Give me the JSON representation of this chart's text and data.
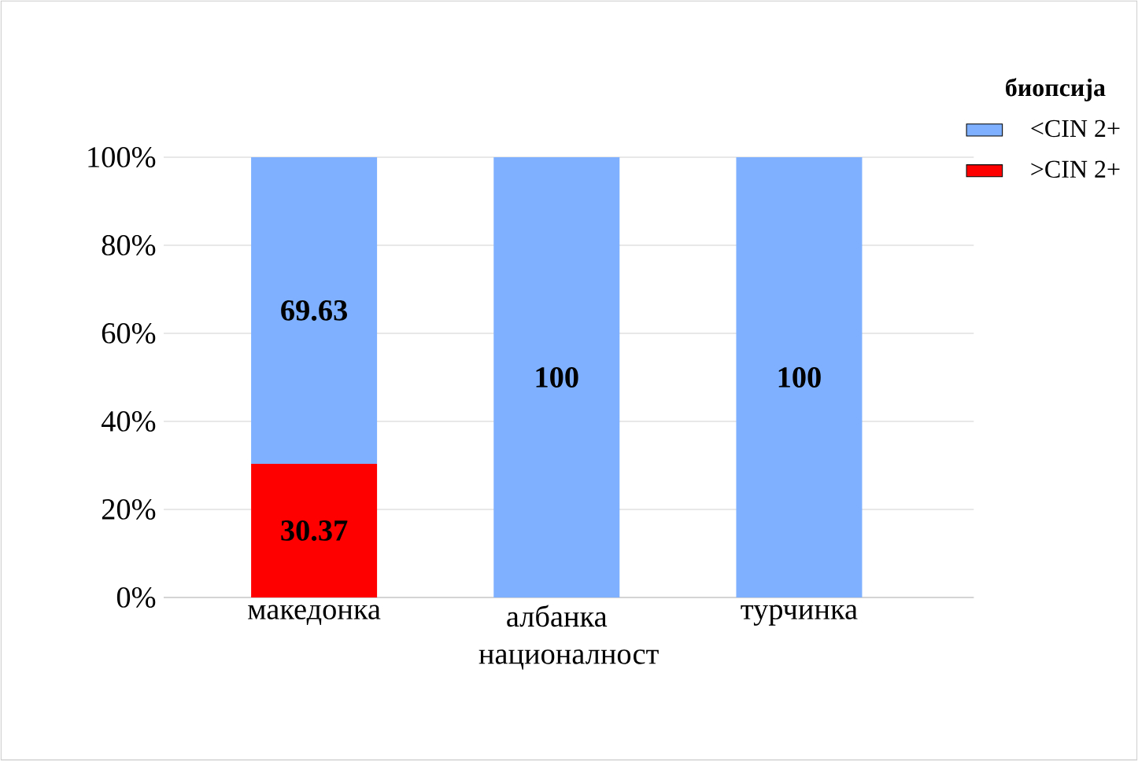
{
  "chart_data": {
    "type": "bar",
    "stacked": true,
    "xlabel": "националност",
    "legend_title": "биопсија",
    "categories": [
      "македонка",
      "албанка",
      "турчинка"
    ],
    "series": [
      {
        "name": ">CIN 2+",
        "color": "#ff0000",
        "values": [
          30.37,
          0,
          0
        ],
        "value_labels": [
          "30.37",
          null,
          null
        ]
      },
      {
        "name": "<CIN 2+",
        "color": "#7eb0ff",
        "values": [
          69.63,
          100,
          100
        ],
        "value_labels": [
          "69.63",
          "100",
          "100"
        ]
      }
    ],
    "ylim": [
      0,
      100
    ],
    "yticks": [
      {
        "value": 0,
        "label": "0%"
      },
      {
        "value": 20,
        "label": "20%"
      },
      {
        "value": 40,
        "label": "40%"
      },
      {
        "value": 60,
        "label": "60%"
      },
      {
        "value": 80,
        "label": "80%"
      },
      {
        "value": 100,
        "label": "100%"
      }
    ],
    "grid": "y",
    "legend": "top right"
  }
}
